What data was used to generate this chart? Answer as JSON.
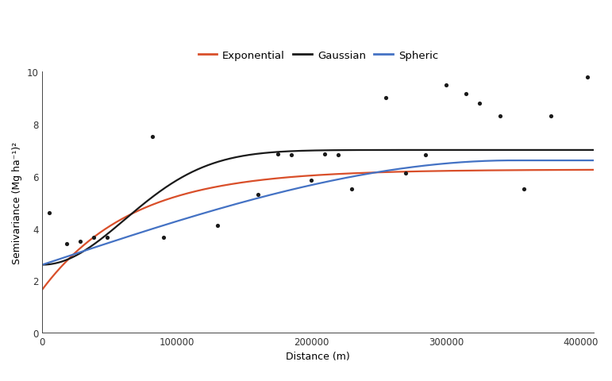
{
  "title": "",
  "xlabel": "Distance (m)",
  "ylabel": "Semivariance (Mg ha⁻¹)²",
  "xlim": [
    0,
    410000
  ],
  "ylim": [
    0,
    10
  ],
  "yticks": [
    0,
    2,
    4,
    6,
    8,
    10
  ],
  "xticks": [
    0,
    100000,
    200000,
    300000,
    400000
  ],
  "scatter_x": [
    5000,
    18000,
    28000,
    38000,
    48000,
    82000,
    90000,
    130000,
    160000,
    175000,
    185000,
    200000,
    210000,
    220000,
    230000,
    255000,
    270000,
    285000,
    300000,
    315000,
    325000,
    340000,
    358000,
    378000,
    405000
  ],
  "scatter_y": [
    4.6,
    3.4,
    3.5,
    3.65,
    3.65,
    7.5,
    3.65,
    4.1,
    5.3,
    6.85,
    6.8,
    5.85,
    6.85,
    6.8,
    5.5,
    9.0,
    6.1,
    6.8,
    9.5,
    9.15,
    8.8,
    8.3,
    5.5,
    8.3,
    9.8
  ],
  "exp_nugget": 1.65,
  "exp_sill": 6.25,
  "exp_range": 200000,
  "gauss_nugget": 2.6,
  "gauss_sill": 7.0,
  "gauss_range": 150000,
  "sph_nugget": 2.6,
  "sph_sill": 6.6,
  "sph_range": 350000,
  "exp_color": "#d94f2a",
  "gauss_color": "#1a1a1a",
  "sph_color": "#4472c4",
  "scatter_color": "#1a1a1a",
  "legend_labels": [
    "Exponential",
    "Gaussian",
    "Spheric"
  ],
  "background_color": "#ffffff",
  "line_width": 1.6,
  "figsize": [
    7.71,
    4.81
  ],
  "dpi": 100
}
